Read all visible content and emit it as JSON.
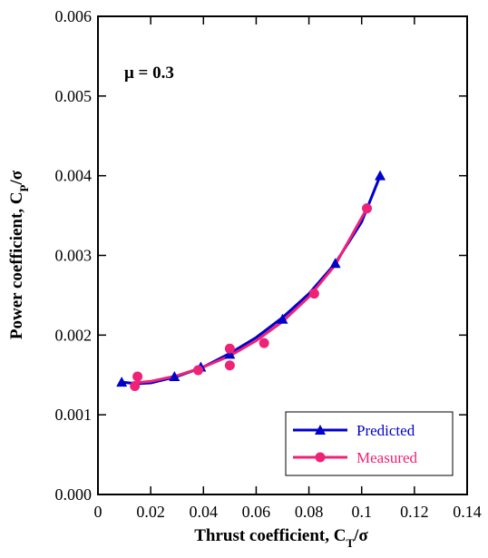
{
  "chart_data": {
    "type": "scatter",
    "xlabel": "Thrust coefficient, C",
    "xlabel_sub": "T",
    "xlabel_suffix": "/σ",
    "ylabel": "Power coefficient, C",
    "ylabel_sub": "P",
    "ylabel_suffix": "/σ",
    "xlim": [
      0,
      0.14
    ],
    "ylim": [
      0,
      0.006
    ],
    "x_ticks": [
      "0",
      "0.02",
      "0.04",
      "0.06",
      "0.08",
      "0.1",
      "0.12",
      "0.14"
    ],
    "y_ticks": [
      "0.000",
      "0.001",
      "0.002",
      "0.003",
      "0.004",
      "0.005",
      "0.006"
    ],
    "annotation": "μ = 0.3",
    "grid": false,
    "legend_position": "bottom-right",
    "series": [
      {
        "name": "Predicted",
        "color": "#0000cc",
        "marker": "triangle",
        "points": [
          {
            "x": 0.009,
            "y": 0.00141
          },
          {
            "x": 0.029,
            "y": 0.00148
          },
          {
            "x": 0.039,
            "y": 0.0016
          },
          {
            "x": 0.05,
            "y": 0.00176
          },
          {
            "x": 0.07,
            "y": 0.0022
          },
          {
            "x": 0.09,
            "y": 0.0029
          },
          {
            "x": 0.107,
            "y": 0.004
          }
        ],
        "curve": [
          {
            "x": 0.009,
            "y": 0.00141
          },
          {
            "x": 0.015,
            "y": 0.00139
          },
          {
            "x": 0.02,
            "y": 0.0014
          },
          {
            "x": 0.03,
            "y": 0.00148
          },
          {
            "x": 0.04,
            "y": 0.0016
          },
          {
            "x": 0.05,
            "y": 0.00177
          },
          {
            "x": 0.06,
            "y": 0.00197
          },
          {
            "x": 0.07,
            "y": 0.00222
          },
          {
            "x": 0.08,
            "y": 0.00252
          },
          {
            "x": 0.09,
            "y": 0.0029
          },
          {
            "x": 0.1,
            "y": 0.00342
          },
          {
            "x": 0.107,
            "y": 0.004
          }
        ]
      },
      {
        "name": "Measured",
        "color": "#ee2277",
        "marker": "circle",
        "points": [
          {
            "x": 0.014,
            "y": 0.00136
          },
          {
            "x": 0.015,
            "y": 0.00148
          },
          {
            "x": 0.038,
            "y": 0.00156
          },
          {
            "x": 0.05,
            "y": 0.00162
          },
          {
            "x": 0.05,
            "y": 0.00183
          },
          {
            "x": 0.063,
            "y": 0.0019
          },
          {
            "x": 0.082,
            "y": 0.00252
          },
          {
            "x": 0.102,
            "y": 0.00359
          }
        ],
        "curve": [
          {
            "x": 0.014,
            "y": 0.0014
          },
          {
            "x": 0.02,
            "y": 0.00142
          },
          {
            "x": 0.03,
            "y": 0.00149
          },
          {
            "x": 0.04,
            "y": 0.0016
          },
          {
            "x": 0.05,
            "y": 0.00174
          },
          {
            "x": 0.06,
            "y": 0.00193
          },
          {
            "x": 0.07,
            "y": 0.00217
          },
          {
            "x": 0.08,
            "y": 0.00248
          },
          {
            "x": 0.09,
            "y": 0.00288
          },
          {
            "x": 0.102,
            "y": 0.00359
          }
        ]
      }
    ]
  }
}
